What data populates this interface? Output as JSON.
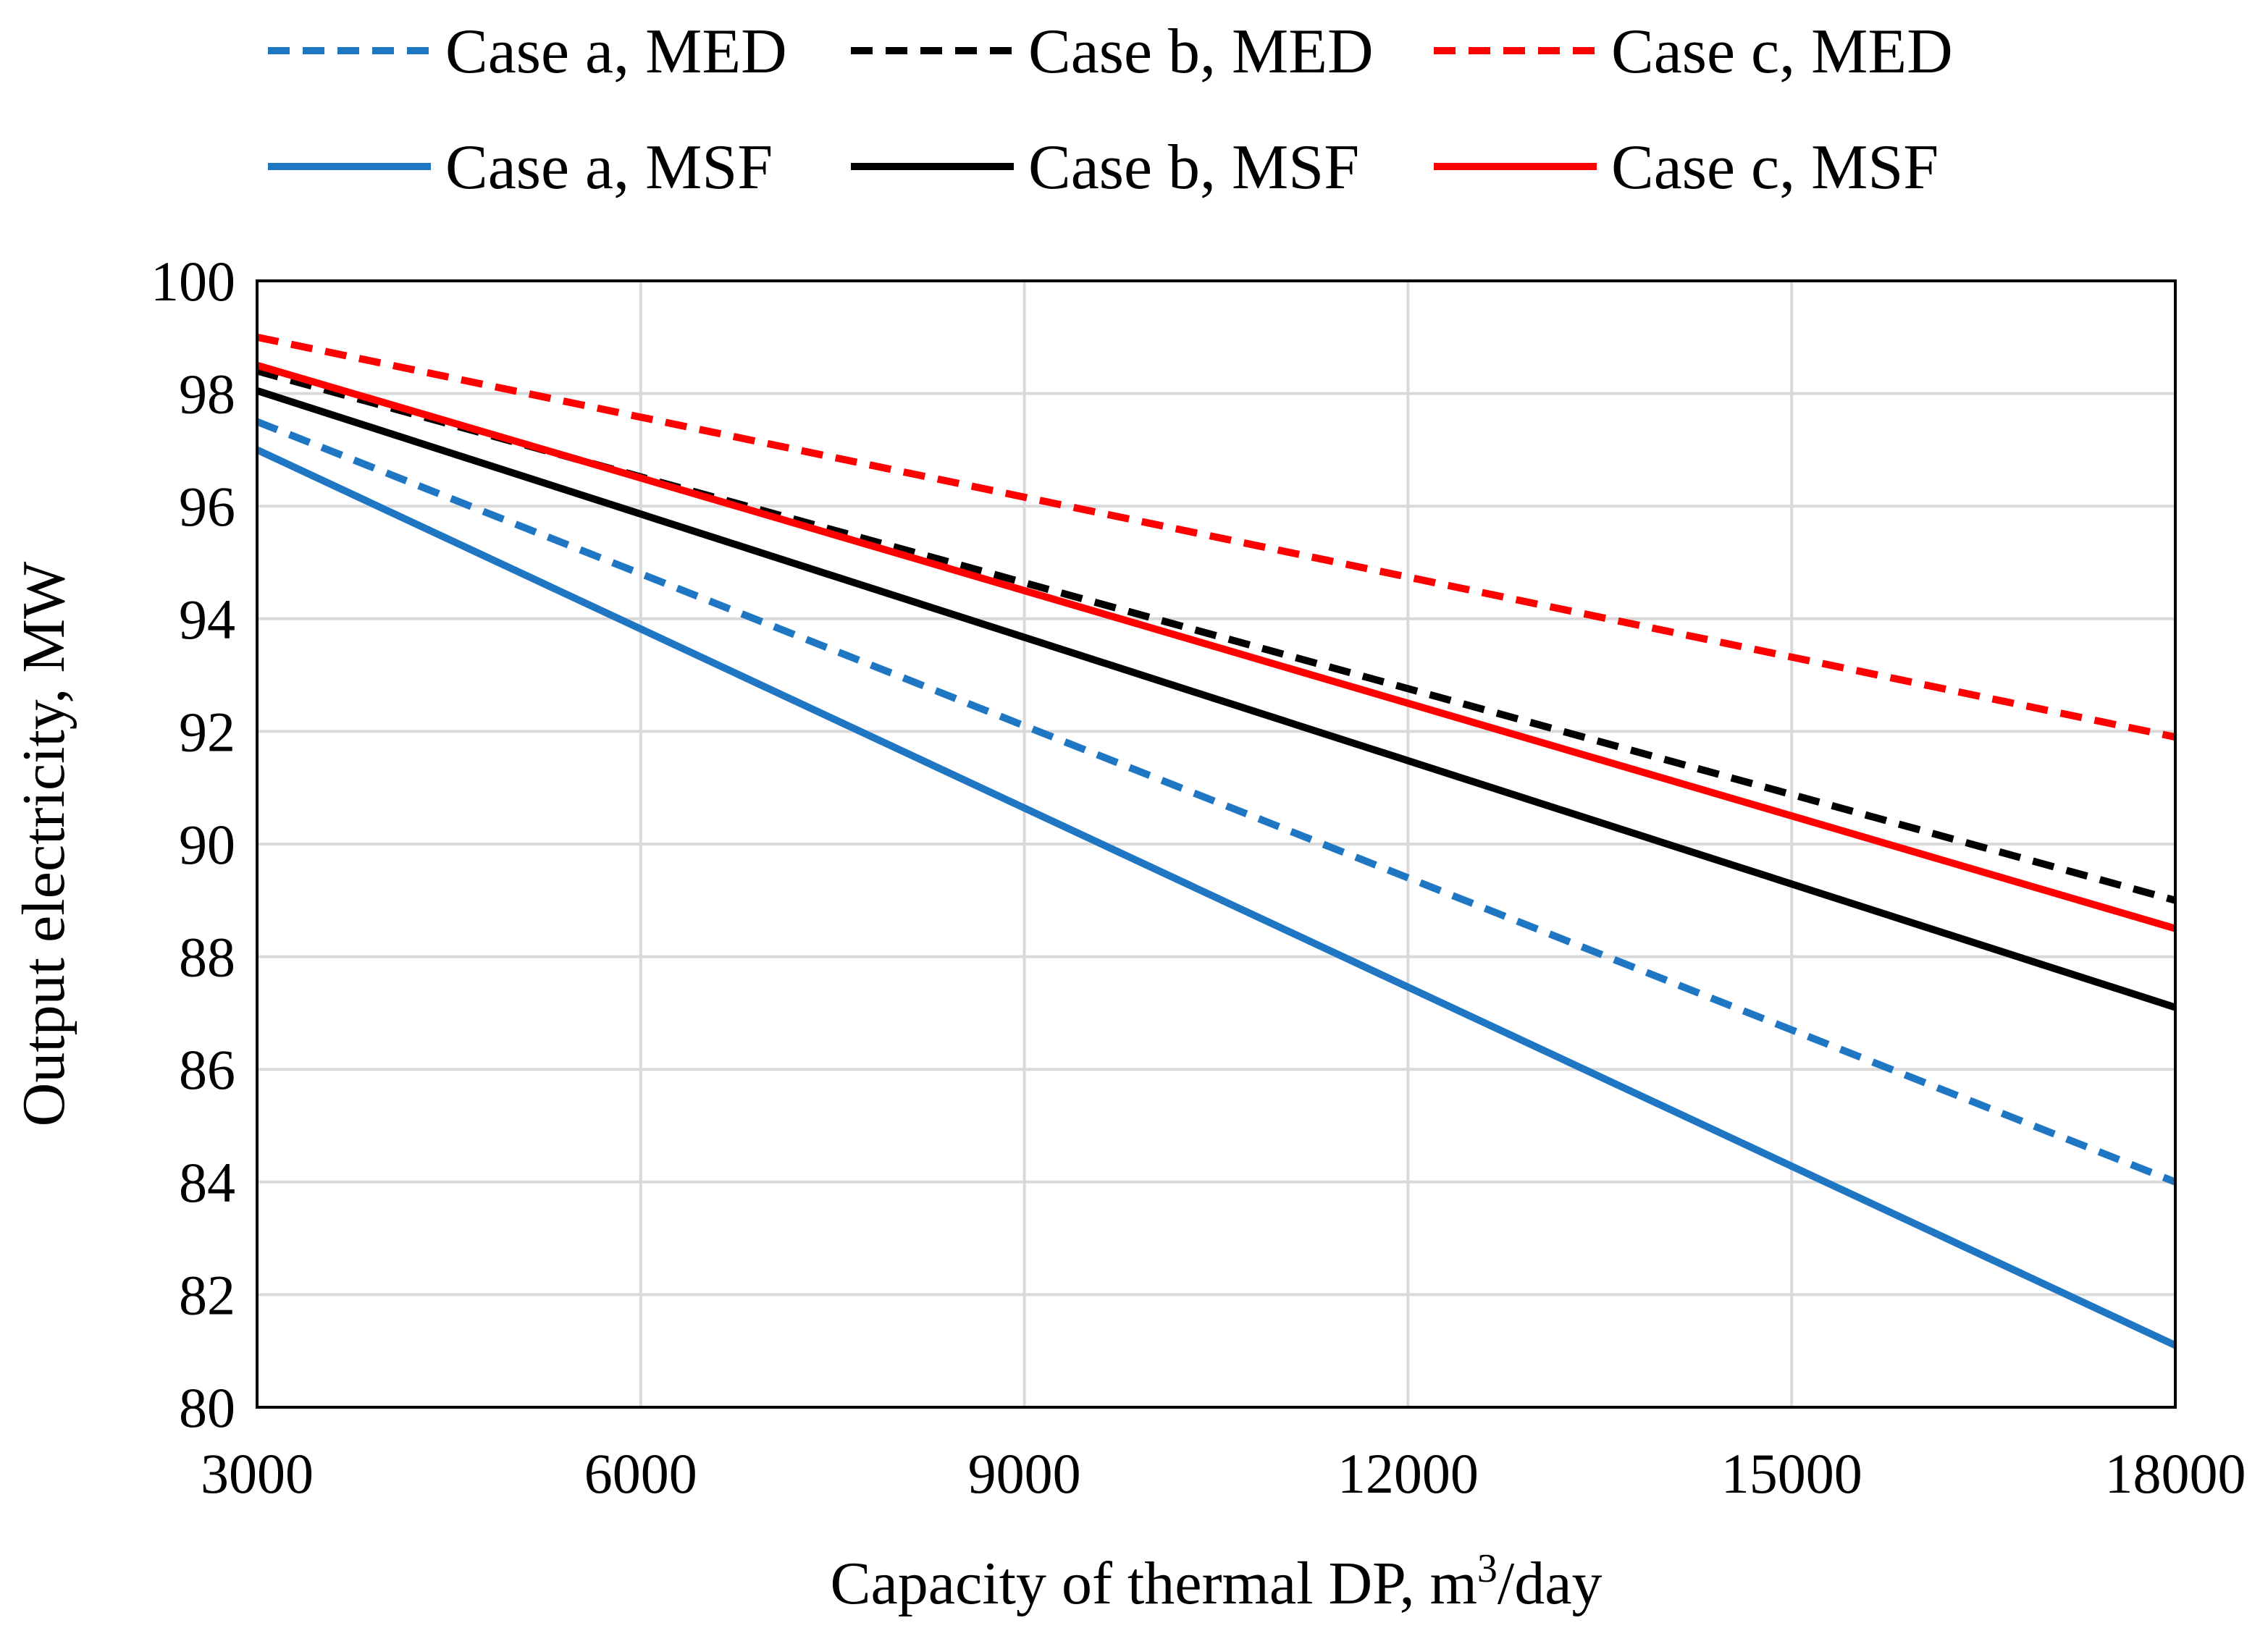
{
  "chart_data": {
    "type": "line",
    "title": "",
    "xlabel": "Capacity of thermal DP, m",
    "xlabel_superscript": "3",
    "xlabel_suffix": "/day",
    "ylabel": "Output electricity, MW",
    "xlim": [
      3000,
      18000
    ],
    "ylim": [
      80,
      100
    ],
    "xticks": [
      3000,
      6000,
      9000,
      12000,
      15000,
      18000
    ],
    "yticks": [
      80,
      82,
      84,
      86,
      88,
      90,
      92,
      94,
      96,
      98,
      100
    ],
    "grid": true,
    "legend_position": "top",
    "series": [
      {
        "name": "Case a, MED",
        "color": "#1f77c4",
        "dash": "dashed",
        "x": [
          3000,
          18000
        ],
        "y": [
          97.5,
          84.0
        ]
      },
      {
        "name": "Case b, MED",
        "color": "#000000",
        "dash": "dashed",
        "x": [
          3000,
          18000
        ],
        "y": [
          98.4,
          89.0
        ]
      },
      {
        "name": "Case c, MED",
        "color": "#ff0000",
        "dash": "dashed",
        "x": [
          3000,
          18000
        ],
        "y": [
          99.0,
          91.9
        ]
      },
      {
        "name": "Case a, MSF",
        "color": "#1f77c4",
        "dash": "solid",
        "x": [
          3000,
          18000
        ],
        "y": [
          97.0,
          81.1
        ]
      },
      {
        "name": "Case b, MSF",
        "color": "#000000",
        "dash": "solid",
        "x": [
          3000,
          18000
        ],
        "y": [
          98.05,
          87.1
        ]
      },
      {
        "name": "Case c, MSF",
        "color": "#ff0000",
        "dash": "solid",
        "x": [
          3000,
          18000
        ],
        "y": [
          98.5,
          88.5
        ]
      }
    ]
  }
}
